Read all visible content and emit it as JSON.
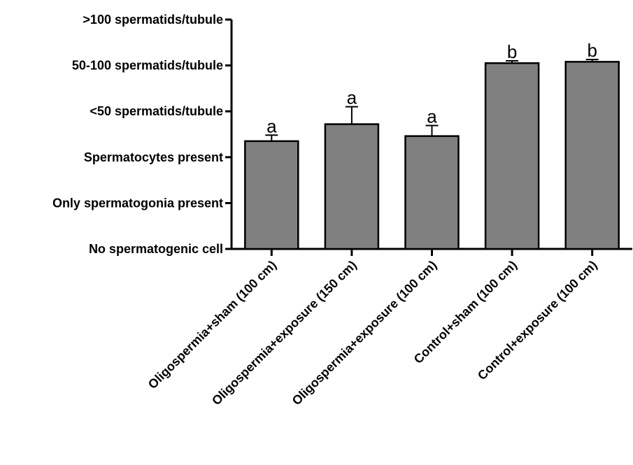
{
  "chart_data": {
    "type": "bar",
    "categories": [
      "Oligospermia+sham (100 cm)",
      "Oligospermia+exposure (150 cm)",
      "Oligospermia+exposure (100 cm)",
      "Control+sham (100 cm)",
      "Control+exposure (100 cm)"
    ],
    "values": [
      2.35,
      2.72,
      2.46,
      4.05,
      4.08
    ],
    "errors": [
      0.13,
      0.38,
      0.23,
      0.05,
      0.05
    ],
    "significance_labels": [
      "a",
      "a",
      "a",
      "b",
      "b"
    ],
    "y_tick_labels": [
      "No spermatogenic cell",
      "Only spermatogonia present",
      "Spermatocytes present",
      "<50 spermatids/tubule",
      "50-100 spermatids/tubule",
      ">100 spermatids/tubule"
    ],
    "ylim": [
      0,
      5
    ],
    "xlabel": "",
    "ylabel": "",
    "title": "",
    "grid": false,
    "bar_color": "#808080",
    "edge_color": "#000000"
  }
}
